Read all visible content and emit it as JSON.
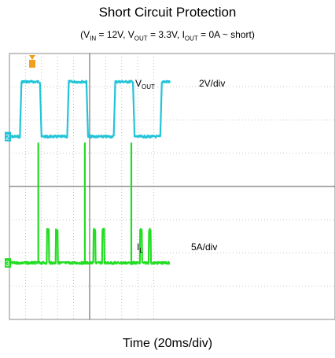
{
  "title": "Short Circuit Protection",
  "subtitle": {
    "vin_sym": "V",
    "vin_sub": "IN",
    "vin_val": " = 12V, ",
    "vout_sym": "V",
    "vout_sub": "OUT",
    "vout_val": " = 3.3V, ",
    "iout_sym": "I",
    "iout_sub": "OUT",
    "iout_val": " = 0A ~ short)",
    "open": "("
  },
  "xlabel": "Time (20ms/div)",
  "chart_data": {
    "type": "line",
    "title": "Short Circuit Protection",
    "xlabel": "Time (20ms/div)",
    "x_divisions": 10,
    "y_divisions": 8,
    "x_unit": "ms",
    "ms_per_div": 20,
    "grid": true,
    "background": "#ffffff",
    "series": [
      {
        "name": "VOUT",
        "label_sym": "V",
        "label_sub": "OUT",
        "scale": "2V/div",
        "color": "#22c4d8",
        "marker": "2",
        "ground_div": 2.5,
        "waveform": "square",
        "low_v": 0,
        "high_v": 3.3,
        "transitions_ms": [
          [
            0,
            0
          ],
          [
            13,
            0
          ],
          [
            15,
            3.3
          ],
          [
            38,
            3.3
          ],
          [
            40,
            0
          ],
          [
            72,
            0
          ],
          [
            74,
            3.3
          ],
          [
            96,
            3.3
          ],
          [
            98,
            0
          ],
          [
            130,
            0
          ],
          [
            132,
            3.3
          ],
          [
            154,
            3.3
          ],
          [
            156,
            0
          ],
          [
            188,
            0
          ],
          [
            190,
            3.3
          ],
          [
            200,
            3.3
          ]
        ]
      },
      {
        "name": "IL",
        "label_sym": "I",
        "label_sub": "L",
        "scale": "5A/div",
        "color": "#22dd22",
        "marker": "3",
        "ground_div": 6.3,
        "waveform": "pulses",
        "spikes_ms": [
          36,
          94,
          152
        ],
        "spike_a": 18,
        "bumps_ms": [
          47,
          58,
          105,
          116,
          163,
          174
        ],
        "bump_a": 5
      }
    ]
  }
}
